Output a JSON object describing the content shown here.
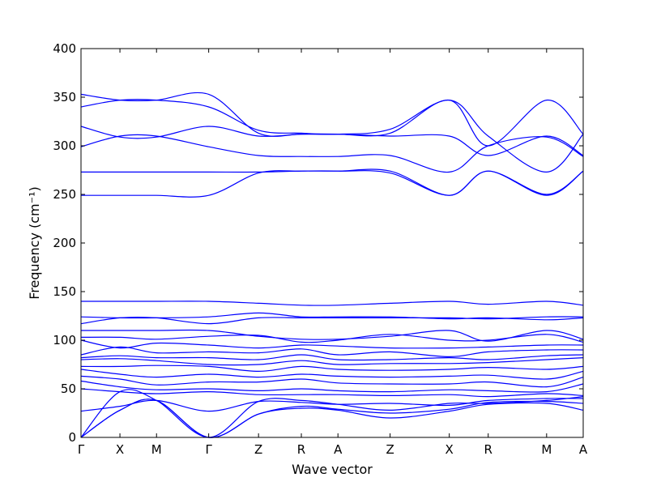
{
  "chart_data": {
    "type": "line",
    "title": "",
    "xlabel": "Wave vector",
    "ylabel": "Frequency (cm⁻¹)",
    "ylim": [
      0,
      400
    ],
    "y_ticks": [
      0,
      50,
      100,
      150,
      200,
      250,
      300,
      350,
      400
    ],
    "grid": false,
    "line_color": "#0000ff",
    "x_ticks": [
      {
        "label": "Γ",
        "pos": 0.0
      },
      {
        "label": "X",
        "pos": 0.5
      },
      {
        "label": "M",
        "pos": 0.97
      },
      {
        "label": "Γ",
        "pos": 1.64
      },
      {
        "label": "Z",
        "pos": 2.28
      },
      {
        "label": "R",
        "pos": 2.83
      },
      {
        "label": "A",
        "pos": 3.3
      },
      {
        "label": "Z",
        "pos": 3.97
      },
      {
        "label": "X",
        "pos": 4.73
      },
      {
        "label": "R",
        "pos": 5.23
      },
      {
        "label": "M",
        "pos": 5.98
      },
      {
        "label": "A",
        "pos": 6.45
      }
    ],
    "path_length": 6.45,
    "series": [
      {
        "values": [
          [
            0,
            340
          ],
          [
            0.5,
            347
          ],
          [
            0.97,
            347
          ],
          [
            1.64,
            340
          ],
          [
            2.28,
            316
          ],
          [
            2.83,
            313
          ],
          [
            3.3,
            312
          ],
          [
            3.97,
            317
          ],
          [
            4.73,
            347
          ],
          [
            5.23,
            310
          ],
          [
            5.98,
            273
          ],
          [
            6.45,
            312
          ]
        ]
      },
      {
        "values": [
          [
            0,
            353
          ],
          [
            0.5,
            347
          ],
          [
            0.97,
            347
          ],
          [
            1.64,
            353
          ],
          [
            2.28,
            313
          ],
          [
            2.83,
            312
          ],
          [
            3.3,
            312
          ],
          [
            3.97,
            313
          ],
          [
            4.73,
            347
          ],
          [
            5.23,
            300
          ],
          [
            5.98,
            347
          ],
          [
            6.45,
            312
          ]
        ]
      },
      {
        "values": [
          [
            0,
            320
          ],
          [
            0.5,
            309
          ],
          [
            0.97,
            309
          ],
          [
            1.64,
            320
          ],
          [
            2.28,
            310
          ],
          [
            2.83,
            312
          ],
          [
            3.3,
            312
          ],
          [
            3.97,
            310
          ],
          [
            4.73,
            310
          ],
          [
            5.23,
            290
          ],
          [
            5.98,
            310
          ],
          [
            6.45,
            290
          ]
        ]
      },
      {
        "values": [
          [
            0,
            299
          ],
          [
            0.5,
            310
          ],
          [
            0.97,
            310
          ],
          [
            1.64,
            299
          ],
          [
            2.28,
            290
          ],
          [
            2.83,
            289
          ],
          [
            3.3,
            289
          ],
          [
            3.97,
            290
          ],
          [
            4.73,
            273
          ],
          [
            5.23,
            300
          ],
          [
            5.98,
            309
          ],
          [
            6.45,
            289
          ]
        ]
      },
      {
        "values": [
          [
            0,
            273
          ],
          [
            0.5,
            273
          ],
          [
            0.97,
            273
          ],
          [
            1.64,
            273
          ],
          [
            2.28,
            273
          ],
          [
            2.83,
            274
          ],
          [
            3.3,
            274
          ],
          [
            3.97,
            272
          ],
          [
            4.73,
            249
          ],
          [
            5.23,
            274
          ],
          [
            5.98,
            249
          ],
          [
            6.45,
            274
          ]
        ]
      },
      {
        "values": [
          [
            0,
            249
          ],
          [
            0.5,
            249
          ],
          [
            0.97,
            249
          ],
          [
            1.64,
            249
          ],
          [
            2.28,
            272
          ],
          [
            2.83,
            274
          ],
          [
            3.3,
            274
          ],
          [
            3.97,
            274
          ],
          [
            4.73,
            249
          ],
          [
            5.23,
            274
          ],
          [
            5.98,
            250
          ],
          [
            6.45,
            274
          ]
        ]
      },
      {
        "values": [
          [
            0,
            140
          ],
          [
            0.5,
            140
          ],
          [
            0.97,
            140
          ],
          [
            1.64,
            140
          ],
          [
            2.28,
            138
          ],
          [
            2.83,
            136
          ],
          [
            3.3,
            136
          ],
          [
            3.97,
            138
          ],
          [
            4.73,
            140
          ],
          [
            5.23,
            137
          ],
          [
            5.98,
            140
          ],
          [
            6.45,
            136
          ]
        ]
      },
      {
        "values": [
          [
            0,
            124
          ],
          [
            0.5,
            123
          ],
          [
            0.97,
            123
          ],
          [
            1.64,
            124
          ],
          [
            2.28,
            128
          ],
          [
            2.83,
            124
          ],
          [
            3.3,
            124
          ],
          [
            3.97,
            124
          ],
          [
            4.73,
            122
          ],
          [
            5.23,
            123
          ],
          [
            5.98,
            121
          ],
          [
            6.45,
            123
          ]
        ]
      },
      {
        "values": [
          [
            0,
            117
          ],
          [
            0.5,
            123
          ],
          [
            0.97,
            123
          ],
          [
            1.64,
            117
          ],
          [
            2.28,
            123
          ],
          [
            2.83,
            123
          ],
          [
            3.3,
            123
          ],
          [
            3.97,
            123
          ],
          [
            4.73,
            123
          ],
          [
            5.23,
            122
          ],
          [
            5.98,
            124
          ],
          [
            6.45,
            124
          ]
        ]
      },
      {
        "values": [
          [
            0,
            110
          ],
          [
            0.5,
            110
          ],
          [
            0.97,
            110
          ],
          [
            1.64,
            110
          ],
          [
            2.28,
            104
          ],
          [
            2.83,
            101
          ],
          [
            3.3,
            101
          ],
          [
            3.97,
            104
          ],
          [
            4.73,
            110
          ],
          [
            5.23,
            99
          ],
          [
            5.98,
            110
          ],
          [
            6.45,
            101
          ]
        ]
      },
      {
        "values": [
          [
            0,
            103
          ],
          [
            0.5,
            103
          ],
          [
            0.97,
            101
          ],
          [
            1.64,
            104
          ],
          [
            2.28,
            105
          ],
          [
            2.83,
            98
          ],
          [
            3.3,
            100
          ],
          [
            3.97,
            106
          ],
          [
            4.73,
            100
          ],
          [
            5.23,
            100
          ],
          [
            5.98,
            106
          ],
          [
            6.45,
            98
          ]
        ]
      },
      {
        "values": [
          [
            0,
            100
          ],
          [
            0.5,
            92
          ],
          [
            0.97,
            97
          ],
          [
            1.64,
            95
          ],
          [
            2.28,
            92
          ],
          [
            2.83,
            95
          ],
          [
            3.3,
            94
          ],
          [
            3.97,
            92
          ],
          [
            4.73,
            92
          ],
          [
            5.23,
            93
          ],
          [
            5.98,
            95
          ],
          [
            6.45,
            95
          ]
        ]
      },
      {
        "values": [
          [
            0,
            85
          ],
          [
            0.5,
            93
          ],
          [
            0.97,
            87
          ],
          [
            1.64,
            88
          ],
          [
            2.28,
            87
          ],
          [
            2.83,
            91
          ],
          [
            3.3,
            85
          ],
          [
            3.97,
            88
          ],
          [
            4.73,
            83
          ],
          [
            5.23,
            88
          ],
          [
            5.98,
            90
          ],
          [
            6.45,
            90
          ]
        ]
      },
      {
        "values": [
          [
            0,
            82
          ],
          [
            0.5,
            84
          ],
          [
            0.97,
            82
          ],
          [
            1.64,
            82
          ],
          [
            2.28,
            80
          ],
          [
            2.83,
            85
          ],
          [
            3.3,
            80
          ],
          [
            3.97,
            80
          ],
          [
            4.73,
            82
          ],
          [
            5.23,
            80
          ],
          [
            5.98,
            84
          ],
          [
            6.45,
            85
          ]
        ]
      },
      {
        "values": [
          [
            0,
            80
          ],
          [
            0.5,
            81
          ],
          [
            0.97,
            79
          ],
          [
            1.64,
            75
          ],
          [
            2.28,
            75
          ],
          [
            2.83,
            79
          ],
          [
            3.3,
            75
          ],
          [
            3.97,
            76
          ],
          [
            4.73,
            76
          ],
          [
            5.23,
            77
          ],
          [
            5.98,
            80
          ],
          [
            6.45,
            82
          ]
        ]
      },
      {
        "values": [
          [
            0,
            73
          ],
          [
            0.5,
            73
          ],
          [
            0.97,
            74
          ],
          [
            1.64,
            73
          ],
          [
            2.28,
            68
          ],
          [
            2.83,
            73
          ],
          [
            3.3,
            70
          ],
          [
            3.97,
            69
          ],
          [
            4.73,
            70
          ],
          [
            5.23,
            72
          ],
          [
            5.98,
            70
          ],
          [
            6.45,
            73
          ]
        ]
      },
      {
        "values": [
          [
            0,
            70
          ],
          [
            0.5,
            65
          ],
          [
            0.97,
            62
          ],
          [
            1.64,
            65
          ],
          [
            2.28,
            62
          ],
          [
            2.83,
            65
          ],
          [
            3.3,
            63
          ],
          [
            3.97,
            62
          ],
          [
            4.73,
            63
          ],
          [
            5.23,
            64
          ],
          [
            5.98,
            60
          ],
          [
            6.45,
            68
          ]
        ]
      },
      {
        "values": [
          [
            0,
            63
          ],
          [
            0.5,
            60
          ],
          [
            0.97,
            54
          ],
          [
            1.64,
            57
          ],
          [
            2.28,
            57
          ],
          [
            2.83,
            60
          ],
          [
            3.3,
            56
          ],
          [
            3.97,
            55
          ],
          [
            4.73,
            55
          ],
          [
            5.23,
            57
          ],
          [
            5.98,
            52
          ],
          [
            6.45,
            62
          ]
        ]
      },
      {
        "values": [
          [
            0,
            58
          ],
          [
            0.5,
            52
          ],
          [
            0.97,
            49
          ],
          [
            1.64,
            50
          ],
          [
            2.28,
            48
          ],
          [
            2.83,
            50
          ],
          [
            3.3,
            48
          ],
          [
            3.97,
            47
          ],
          [
            4.73,
            49
          ],
          [
            5.23,
            48
          ],
          [
            5.98,
            47
          ],
          [
            6.45,
            55
          ]
        ]
      },
      {
        "values": [
          [
            0,
            50
          ],
          [
            0.5,
            47
          ],
          [
            0.97,
            45
          ],
          [
            1.64,
            47
          ],
          [
            2.28,
            44
          ],
          [
            2.83,
            44
          ],
          [
            3.3,
            44
          ],
          [
            3.97,
            43
          ],
          [
            4.73,
            44
          ],
          [
            5.23,
            42
          ],
          [
            5.98,
            45
          ],
          [
            6.45,
            43
          ]
        ]
      },
      {
        "values": [
          [
            0,
            27
          ],
          [
            0.5,
            32
          ],
          [
            0.97,
            38
          ],
          [
            1.64,
            27
          ],
          [
            2.28,
            37
          ],
          [
            2.83,
            36
          ],
          [
            3.3,
            34
          ],
          [
            3.97,
            35
          ],
          [
            4.73,
            33
          ],
          [
            5.23,
            38
          ],
          [
            5.98,
            40
          ],
          [
            6.45,
            40
          ]
        ]
      },
      {
        "values": [
          [
            0,
            0
          ],
          [
            0.5,
            28
          ],
          [
            0.97,
            38
          ],
          [
            1.64,
            0
          ],
          [
            2.28,
            24
          ],
          [
            2.83,
            32
          ],
          [
            3.3,
            29
          ],
          [
            3.97,
            25
          ],
          [
            4.73,
            29
          ],
          [
            5.23,
            36
          ],
          [
            5.98,
            37
          ],
          [
            6.45,
            35
          ]
        ]
      },
      {
        "values": [
          [
            0,
            0
          ],
          [
            0.5,
            28
          ],
          [
            0.97,
            38
          ],
          [
            1.64,
            0
          ],
          [
            2.28,
            24
          ],
          [
            2.83,
            30
          ],
          [
            3.3,
            28
          ],
          [
            3.97,
            20
          ],
          [
            4.73,
            27
          ],
          [
            5.23,
            34
          ],
          [
            5.98,
            35
          ],
          [
            6.45,
            28
          ]
        ]
      },
      {
        "values": [
          [
            0,
            0
          ],
          [
            0.5,
            47
          ],
          [
            0.97,
            38
          ],
          [
            1.64,
            0
          ],
          [
            2.28,
            37
          ],
          [
            2.83,
            38
          ],
          [
            3.3,
            34
          ],
          [
            3.97,
            28
          ],
          [
            4.73,
            35
          ],
          [
            5.23,
            35
          ],
          [
            5.98,
            38
          ],
          [
            6.45,
            42
          ]
        ]
      }
    ]
  }
}
